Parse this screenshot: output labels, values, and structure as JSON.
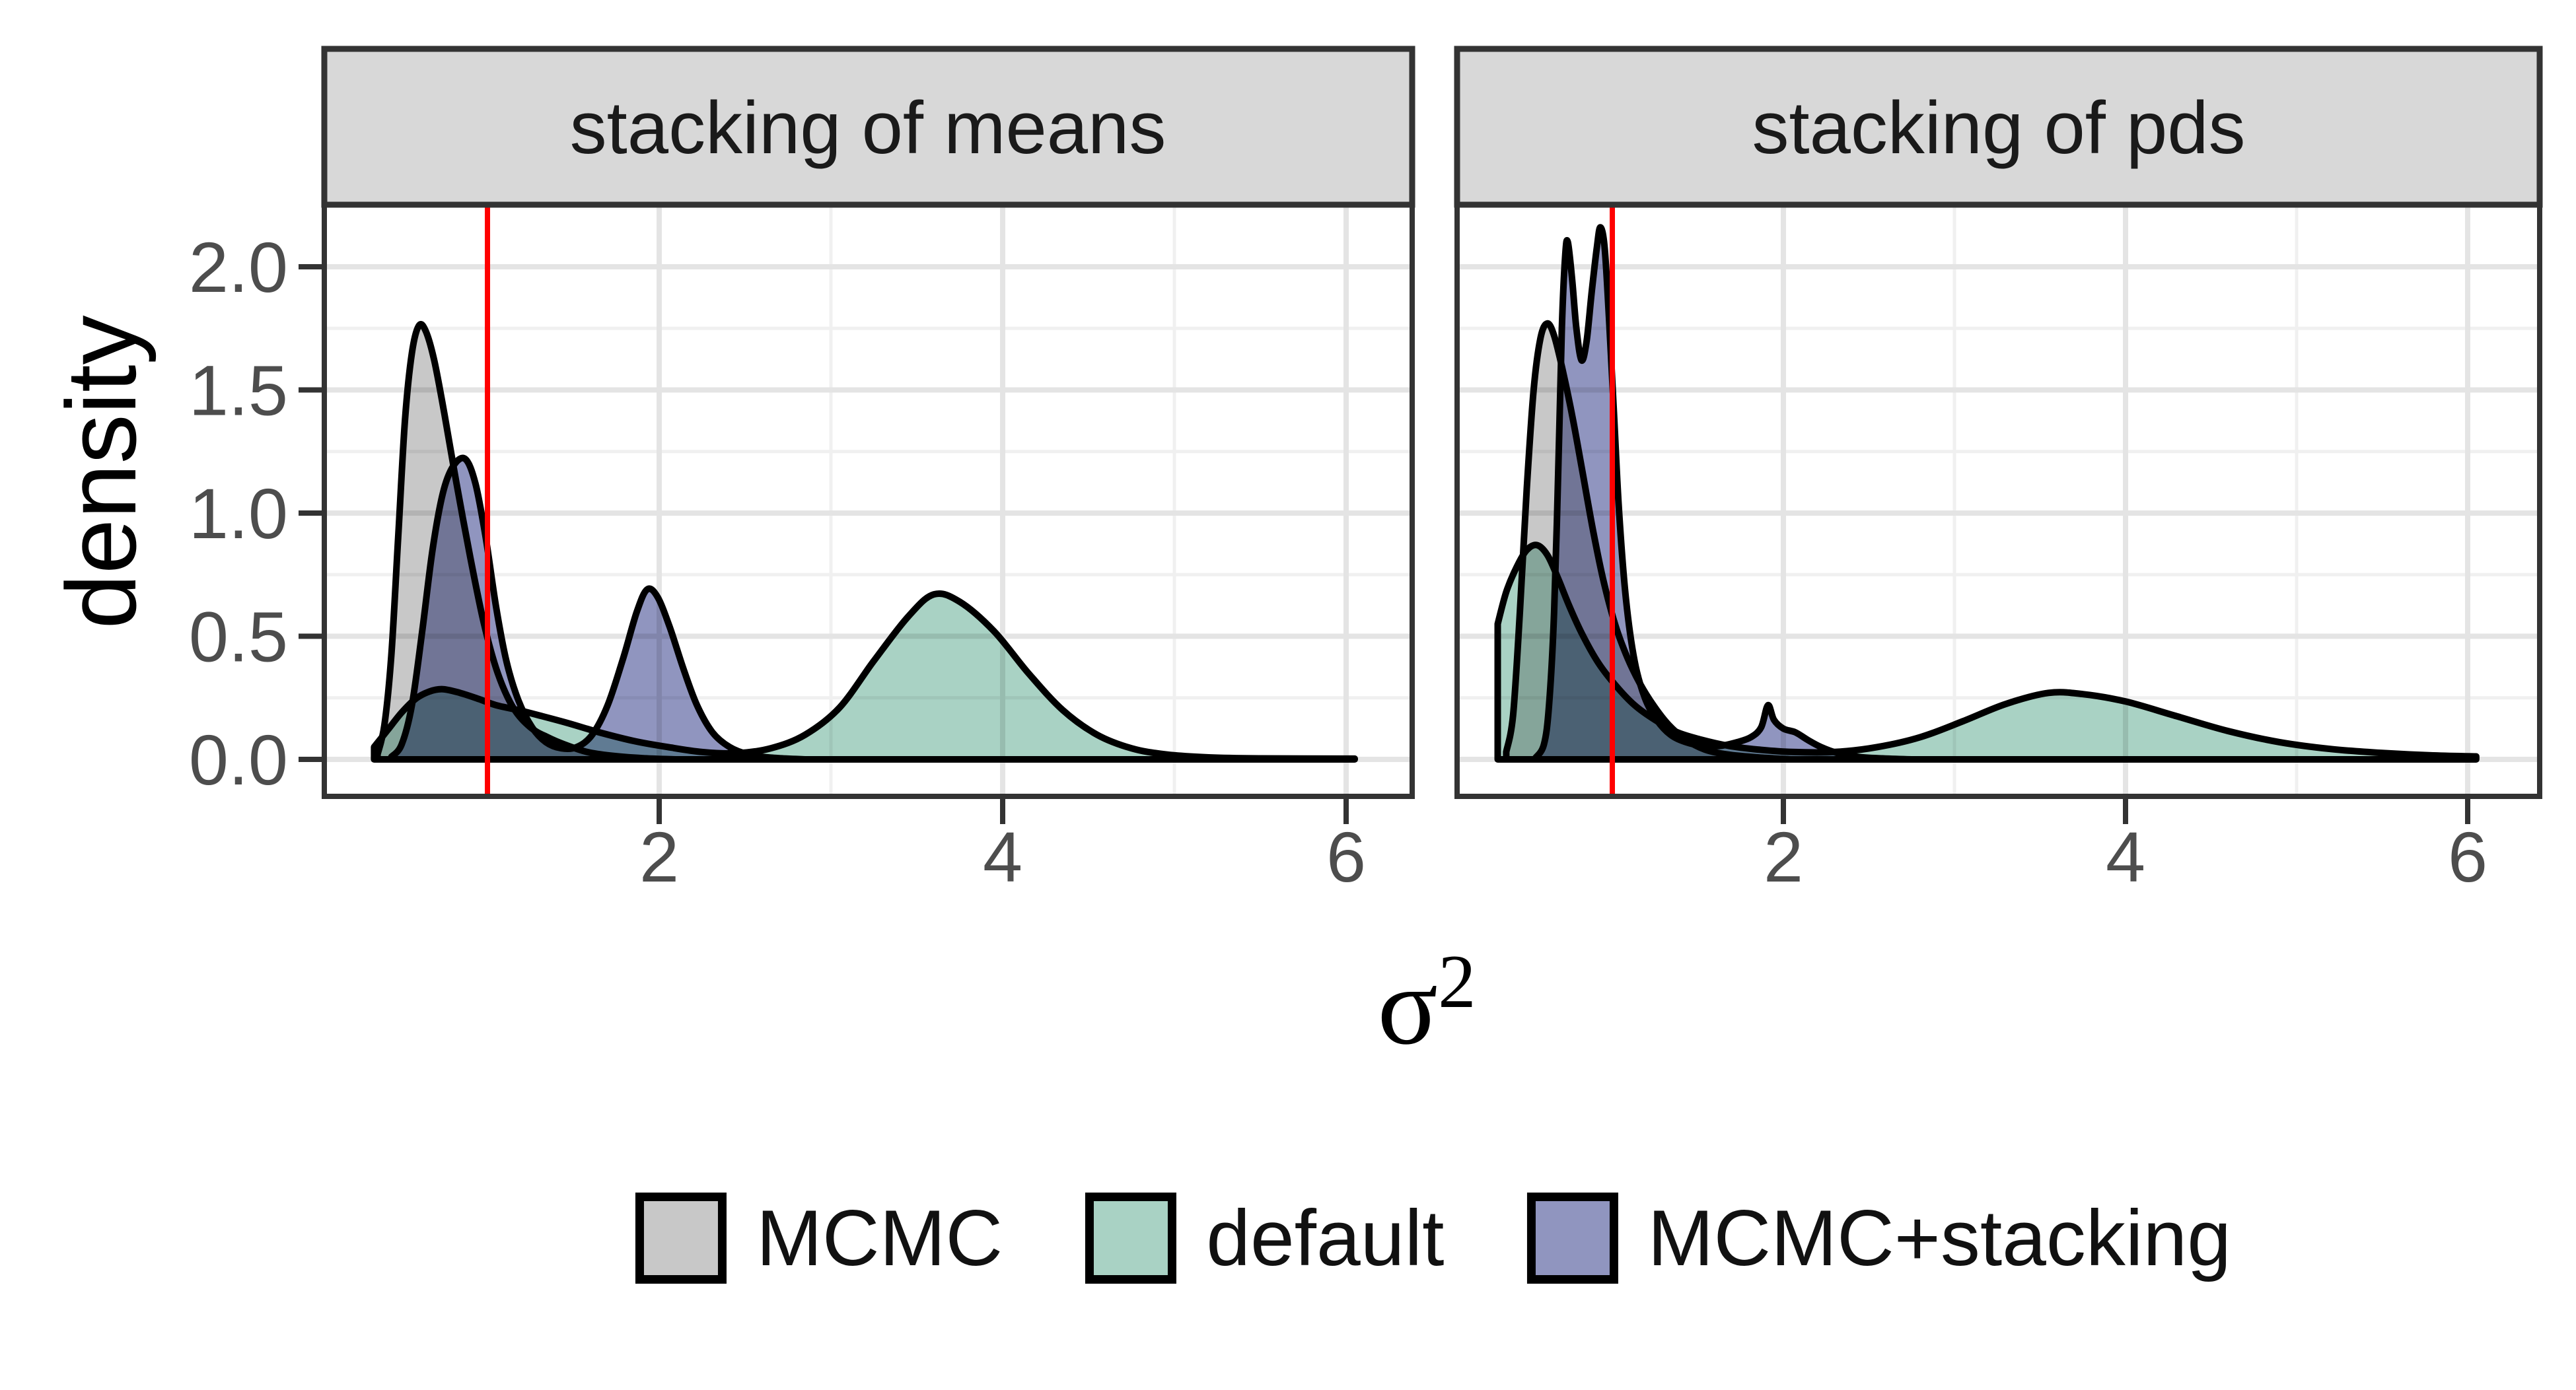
{
  "chart_data": {
    "type": "area",
    "subtype": "faceted-density-plot",
    "ylabel": "density",
    "xlabel": {
      "base": "σ",
      "superscript": "2"
    },
    "x_ticks": [
      "2",
      "4",
      "6"
    ],
    "x_tick_values": [
      2,
      4,
      6
    ],
    "y_ticks": [
      "0.0",
      "0.5",
      "1.0",
      "1.5",
      "2.0"
    ],
    "y_tick_values": [
      0,
      0.5,
      1,
      1.5,
      2
    ],
    "x_minor_gridlines": [
      1,
      3,
      5
    ],
    "y_minor_gridlines": [
      0.25,
      0.75,
      1.25,
      1.75,
      2.25
    ],
    "x_range": [
      0.05,
      6.4
    ],
    "y_range": [
      -0.15,
      2.25
    ],
    "grid": "on",
    "legend_position": "bottom",
    "reference_line": {
      "x": 1,
      "color": "#FF0000"
    },
    "colors": {
      "strip_background": "#d8d8d8",
      "panel_background": "#ffffff",
      "panel_border": "#333333",
      "grid_major": "#e4e4e4",
      "grid_minor": "#f0f0f0",
      "tick_mark": "#333333",
      "tick_label": "#4d4d4d",
      "curve_outline": "#000000"
    },
    "panels": [
      {
        "title": "stacking of means",
        "series": [
          {
            "name": "MCMC",
            "fill": "#c8c8c8",
            "points": [
              [
                0.36,
                0.02
              ],
              [
                0.4,
                0.14
              ],
              [
                0.44,
                0.42
              ],
              [
                0.48,
                0.9
              ],
              [
                0.52,
                1.38
              ],
              [
                0.56,
                1.65
              ],
              [
                0.6,
                1.76
              ],
              [
                0.64,
                1.74
              ],
              [
                0.69,
                1.62
              ],
              [
                0.75,
                1.4
              ],
              [
                0.82,
                1.12
              ],
              [
                0.9,
                0.82
              ],
              [
                0.98,
                0.55
              ],
              [
                1.06,
                0.35
              ],
              [
                1.15,
                0.21
              ],
              [
                1.25,
                0.13
              ],
              [
                1.35,
                0.09
              ],
              [
                1.45,
                0.06
              ],
              [
                1.58,
                0.03
              ],
              [
                1.72,
                0.015
              ],
              [
                1.9,
                0.005
              ],
              [
                2.1,
                0.0
              ]
            ]
          },
          {
            "name": "default",
            "fill": "#a9d2c4",
            "points": [
              [
                0.34,
                0.05
              ],
              [
                0.42,
                0.12
              ],
              [
                0.5,
                0.19
              ],
              [
                0.58,
                0.245
              ],
              [
                0.66,
                0.275
              ],
              [
                0.74,
                0.285
              ],
              [
                0.84,
                0.27
              ],
              [
                0.95,
                0.245
              ],
              [
                1.05,
                0.22
              ],
              [
                1.18,
                0.2
              ],
              [
                1.32,
                0.175
              ],
              [
                1.48,
                0.145
              ],
              [
                1.65,
                0.11
              ],
              [
                1.85,
                0.075
              ],
              [
                2.05,
                0.05
              ],
              [
                2.25,
                0.03
              ],
              [
                2.45,
                0.025
              ],
              [
                2.65,
                0.045
              ],
              [
                2.85,
                0.1
              ],
              [
                3.05,
                0.21
              ],
              [
                3.25,
                0.4
              ],
              [
                3.45,
                0.58
              ],
              [
                3.6,
                0.67
              ],
              [
                3.75,
                0.64
              ],
              [
                3.95,
                0.52
              ],
              [
                4.15,
                0.35
              ],
              [
                4.35,
                0.2
              ],
              [
                4.55,
                0.1
              ],
              [
                4.75,
                0.045
              ],
              [
                4.95,
                0.02
              ],
              [
                5.2,
                0.008
              ],
              [
                5.5,
                0.004
              ],
              [
                6.05,
                0.003
              ]
            ]
          },
          {
            "name": "MCMC+stacking",
            "fill": "#9095bf",
            "points": [
              [
                0.44,
                0.01
              ],
              [
                0.5,
                0.06
              ],
              [
                0.56,
                0.22
              ],
              [
                0.62,
                0.52
              ],
              [
                0.68,
                0.85
              ],
              [
                0.74,
                1.08
              ],
              [
                0.8,
                1.19
              ],
              [
                0.87,
                1.22
              ],
              [
                0.93,
                1.12
              ],
              [
                0.99,
                0.9
              ],
              [
                1.05,
                0.62
              ],
              [
                1.11,
                0.4
              ],
              [
                1.18,
                0.24
              ],
              [
                1.26,
                0.13
              ],
              [
                1.34,
                0.07
              ],
              [
                1.43,
                0.045
              ],
              [
                1.52,
                0.05
              ],
              [
                1.61,
                0.1
              ],
              [
                1.7,
                0.22
              ],
              [
                1.79,
                0.41
              ],
              [
                1.87,
                0.6
              ],
              [
                1.93,
                0.69
              ],
              [
                1.99,
                0.66
              ],
              [
                2.06,
                0.54
              ],
              [
                2.14,
                0.37
              ],
              [
                2.22,
                0.22
              ],
              [
                2.31,
                0.11
              ],
              [
                2.41,
                0.05
              ],
              [
                2.52,
                0.02
              ],
              [
                2.65,
                0.007
              ],
              [
                2.85,
                0.0
              ]
            ]
          }
        ]
      },
      {
        "title": "stacking of pds",
        "series": [
          {
            "name": "MCMC",
            "fill": "#c8c8c8",
            "points": [
              [
                0.38,
                0.03
              ],
              [
                0.42,
                0.18
              ],
              [
                0.46,
                0.6
              ],
              [
                0.5,
                1.1
              ],
              [
                0.54,
                1.5
              ],
              [
                0.58,
                1.71
              ],
              [
                0.62,
                1.77
              ],
              [
                0.66,
                1.72
              ],
              [
                0.71,
                1.58
              ],
              [
                0.77,
                1.38
              ],
              [
                0.83,
                1.15
              ],
              [
                0.89,
                0.92
              ],
              [
                0.95,
                0.72
              ],
              [
                1.02,
                0.54
              ],
              [
                1.09,
                0.41
              ],
              [
                1.16,
                0.31
              ],
              [
                1.24,
                0.22
              ],
              [
                1.33,
                0.14
              ],
              [
                1.43,
                0.08
              ],
              [
                1.54,
                0.04
              ],
              [
                1.67,
                0.02
              ],
              [
                1.85,
                0.008
              ],
              [
                2.05,
                0.0
              ]
            ]
          },
          {
            "name": "default",
            "fill": "#a9d2c4",
            "points": [
              [
                0.33,
                0.55
              ],
              [
                0.38,
                0.68
              ],
              [
                0.44,
                0.78
              ],
              [
                0.5,
                0.85
              ],
              [
                0.56,
                0.87
              ],
              [
                0.62,
                0.83
              ],
              [
                0.68,
                0.74
              ],
              [
                0.75,
                0.62
              ],
              [
                0.83,
                0.5
              ],
              [
                0.92,
                0.39
              ],
              [
                1.02,
                0.3
              ],
              [
                1.13,
                0.22
              ],
              [
                1.25,
                0.16
              ],
              [
                1.38,
                0.11
              ],
              [
                1.52,
                0.08
              ],
              [
                1.68,
                0.055
              ],
              [
                1.85,
                0.04
              ],
              [
                2.05,
                0.03
              ],
              [
                2.3,
                0.03
              ],
              [
                2.55,
                0.05
              ],
              [
                2.8,
                0.09
              ],
              [
                3.05,
                0.155
              ],
              [
                3.3,
                0.225
              ],
              [
                3.55,
                0.27
              ],
              [
                3.75,
                0.265
              ],
              [
                4.0,
                0.235
              ],
              [
                4.3,
                0.175
              ],
              [
                4.6,
                0.115
              ],
              [
                4.9,
                0.07
              ],
              [
                5.2,
                0.042
              ],
              [
                5.5,
                0.026
              ],
              [
                5.8,
                0.016
              ],
              [
                6.05,
                0.012
              ]
            ]
          },
          {
            "name": "MCMC+stacking",
            "fill": "#9095bf",
            "points": [
              [
                0.55,
                0.005
              ],
              [
                0.6,
                0.06
              ],
              [
                0.63,
                0.22
              ],
              [
                0.66,
                0.6
              ],
              [
                0.685,
                1.2
              ],
              [
                0.705,
                1.75
              ],
              [
                0.725,
                2.05
              ],
              [
                0.74,
                2.1
              ],
              [
                0.765,
                1.95
              ],
              [
                0.79,
                1.75
              ],
              [
                0.82,
                1.62
              ],
              [
                0.85,
                1.7
              ],
              [
                0.88,
                1.9
              ],
              [
                0.91,
                2.08
              ],
              [
                0.93,
                2.16
              ],
              [
                0.955,
                2.08
              ],
              [
                0.98,
                1.8
              ],
              [
                1.01,
                1.4
              ],
              [
                1.04,
                1.0
              ],
              [
                1.08,
                0.65
              ],
              [
                1.13,
                0.4
              ],
              [
                1.19,
                0.25
              ],
              [
                1.26,
                0.16
              ],
              [
                1.34,
                0.1
              ],
              [
                1.43,
                0.07
              ],
              [
                1.53,
                0.055
              ],
              [
                1.63,
                0.055
              ],
              [
                1.73,
                0.07
              ],
              [
                1.81,
                0.09
              ],
              [
                1.87,
                0.13
              ],
              [
                1.91,
                0.22
              ],
              [
                1.945,
                0.16
              ],
              [
                2.0,
                0.125
              ],
              [
                2.07,
                0.11
              ],
              [
                2.14,
                0.08
              ],
              [
                2.22,
                0.05
              ],
              [
                2.32,
                0.025
              ],
              [
                2.44,
                0.01
              ],
              [
                2.58,
                0.004
              ],
              [
                2.75,
                0.0
              ]
            ]
          }
        ]
      }
    ],
    "legend": {
      "items": [
        {
          "label": "MCMC",
          "color": "#c8c8c8"
        },
        {
          "label": "default",
          "color": "#a9d2c4"
        },
        {
          "label": "MCMC+stacking",
          "color": "#9095bf"
        }
      ]
    }
  }
}
